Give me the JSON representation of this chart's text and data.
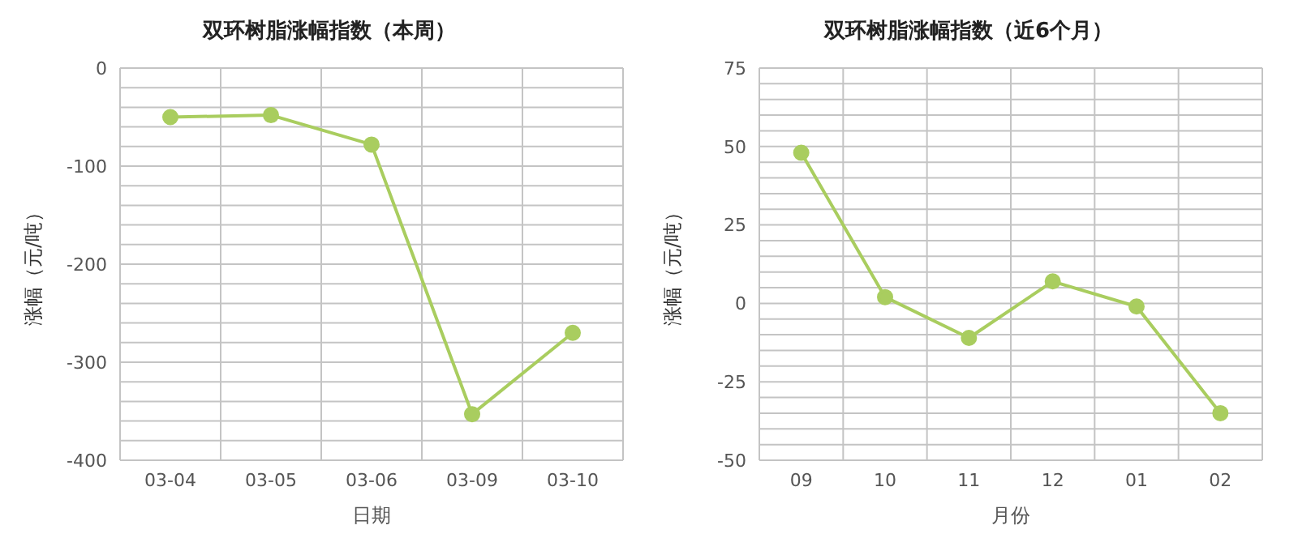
{
  "chart_data": [
    {
      "type": "line",
      "title": "双环树脂涨幅指数（本周）",
      "xlabel": "日期",
      "ylabel": "涨幅（元/吨）",
      "categories": [
        "03-04",
        "03-05",
        "03-06",
        "03-09",
        "03-10"
      ],
      "series": [
        {
          "color": "#a9cd5f",
          "values": [
            -50,
            -48,
            -78,
            -353,
            -270
          ]
        }
      ],
      "ylim": [
        -400,
        0
      ],
      "yticks": [
        -400,
        {
          "value": -380,
          "label": null
        },
        {
          "value": -360,
          "label": null
        },
        {
          "value": -340,
          "label": null
        },
        {
          "value": -320,
          "label": null
        },
        -300,
        {
          "value": -280,
          "label": null
        },
        {
          "value": -260,
          "label": null
        },
        {
          "value": -240,
          "label": null
        },
        {
          "value": -220,
          "label": null
        },
        -200,
        {
          "value": -180,
          "label": null
        },
        {
          "value": -160,
          "label": null
        },
        {
          "value": -140,
          "label": null
        },
        {
          "value": -120,
          "label": null
        },
        -100,
        {
          "value": -80,
          "label": null
        },
        {
          "value": -60,
          "label": null
        },
        {
          "value": -40,
          "label": null
        },
        {
          "value": -20,
          "label": null
        },
        0
      ],
      "grid": true,
      "marker": "circle"
    },
    {
      "type": "line",
      "title": "双环树脂涨幅指数（近6个月）",
      "xlabel": "月份",
      "ylabel": "涨幅（元/吨）",
      "categories": [
        "09",
        "10",
        "11",
        "12",
        "01",
        "02"
      ],
      "series": [
        {
          "color": "#a9cd5f",
          "values": [
            48,
            2,
            -11,
            7,
            -1,
            -35
          ]
        }
      ],
      "ylim": [
        -50,
        75
      ],
      "yticks": [
        -50,
        {
          "value": -45,
          "label": null
        },
        {
          "value": -40,
          "label": null
        },
        {
          "value": -35,
          "label": null
        },
        {
          "value": -30,
          "label": null
        },
        -25,
        {
          "value": -20,
          "label": null
        },
        {
          "value": -15,
          "label": null
        },
        {
          "value": -10,
          "label": null
        },
        {
          "value": -5,
          "label": null
        },
        0,
        {
          "value": 5,
          "label": null
        },
        {
          "value": 10,
          "label": null
        },
        {
          "value": 15,
          "label": null
        },
        {
          "value": 20,
          "label": null
        },
        25,
        {
          "value": 30,
          "label": null
        },
        {
          "value": 35,
          "label": null
        },
        {
          "value": 40,
          "label": null
        },
        {
          "value": 45,
          "label": null
        },
        50,
        {
          "value": 55,
          "label": null
        },
        {
          "value": 60,
          "label": null
        },
        {
          "value": 65,
          "label": null
        },
        {
          "value": 70,
          "label": null
        },
        75
      ],
      "grid": true,
      "marker": "circle"
    }
  ]
}
